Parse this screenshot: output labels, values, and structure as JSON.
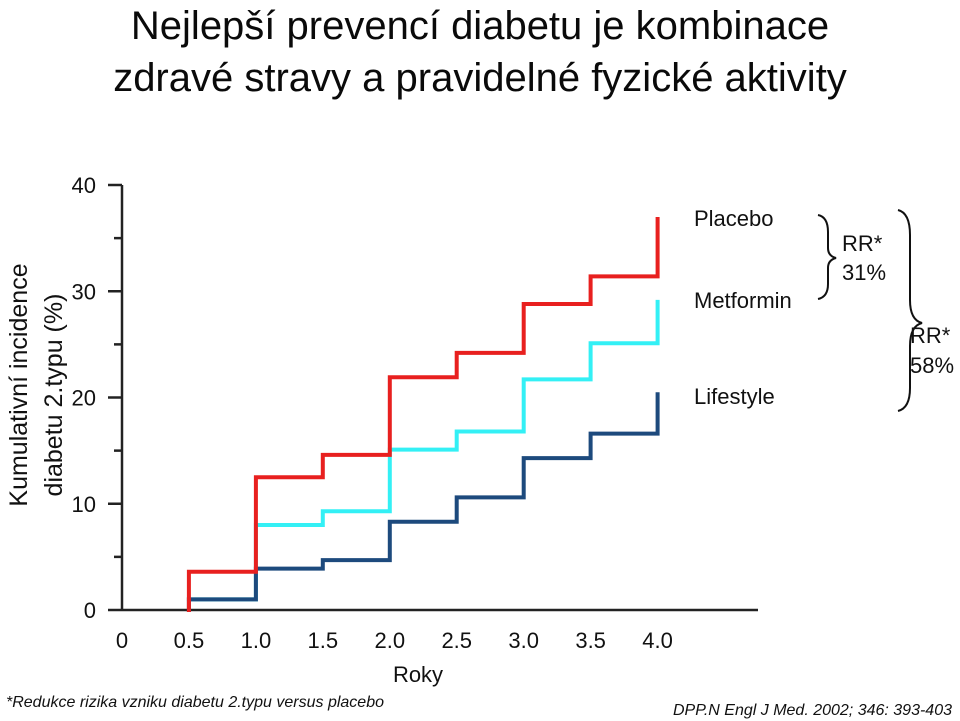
{
  "title_line1": "Nejlepší prevencí diabetu je kombinace",
  "title_line2": "zdravé stravy a pravidelné fyzické aktivity",
  "footnote": "*Redukce rizika vzniku diabetu 2.typu versus placebo",
  "source": "DPP.N Engl J Med. 2002; 346: 393-403",
  "annotations": {
    "rr1_label": "RR*",
    "rr1_value": "31%",
    "rr2_label": "RR*",
    "rr2_value": "58%"
  },
  "chart_data": {
    "type": "line",
    "step": true,
    "title": "",
    "xlabel": "Roky",
    "ylabel_line1": "Kumulativní incidence",
    "ylabel_line2": "diabetu 2.typu (%)",
    "xlim": [
      0,
      4.75
    ],
    "ylim": [
      0,
      40
    ],
    "x_ticks": [
      "0",
      "0.5",
      "1.0",
      "1.5",
      "2.0",
      "2.5",
      "3.0",
      "3.5",
      "4.0"
    ],
    "x_tick_values": [
      0,
      0.5,
      1.0,
      1.5,
      2.0,
      2.5,
      3.0,
      3.5,
      4.0
    ],
    "y_ticks": [
      "0",
      "10",
      "20",
      "30",
      "40"
    ],
    "y_tick_values": [
      0,
      10,
      20,
      30,
      40
    ],
    "y_minor_ticks": [
      5,
      15,
      25,
      35
    ],
    "grid": false,
    "legend": "right-inline",
    "series": [
      {
        "name": "Placebo",
        "color": "#e8201f",
        "x": [
          0.5,
          0.5,
          1.0,
          1.0,
          1.5,
          1.5,
          2.0,
          2.0,
          2.5,
          2.5,
          3.0,
          3.0,
          3.5,
          3.5,
          4.0,
          4.0
        ],
        "y": [
          0,
          3.6,
          3.6,
          12.5,
          12.5,
          14.6,
          14.6,
          21.9,
          21.9,
          24.2,
          24.2,
          28.8,
          28.8,
          31.4,
          31.4,
          36.8
        ]
      },
      {
        "name": "Metformin",
        "color": "#33f0f5",
        "x": [
          0.5,
          1.0,
          1.0,
          1.5,
          1.5,
          2.0,
          2.0,
          2.5,
          2.5,
          3.0,
          3.0,
          3.5,
          3.5,
          4.0,
          4.0
        ],
        "y": [
          1.0,
          1.0,
          8.0,
          8.0,
          9.3,
          9.3,
          15.1,
          15.1,
          16.8,
          16.8,
          21.7,
          21.7,
          25.1,
          25.1,
          29.0
        ]
      },
      {
        "name": "Lifestyle",
        "color": "#1d4a7d",
        "x": [
          0.5,
          0.5,
          1.0,
          1.0,
          1.5,
          1.5,
          2.0,
          2.0,
          2.5,
          2.5,
          3.0,
          3.0,
          3.5,
          3.5,
          4.0,
          4.0
        ],
        "y": [
          0,
          1.0,
          1.0,
          3.9,
          3.9,
          4.7,
          4.7,
          8.3,
          8.3,
          10.6,
          10.6,
          14.3,
          14.3,
          16.6,
          16.6,
          20.3
        ]
      }
    ]
  }
}
